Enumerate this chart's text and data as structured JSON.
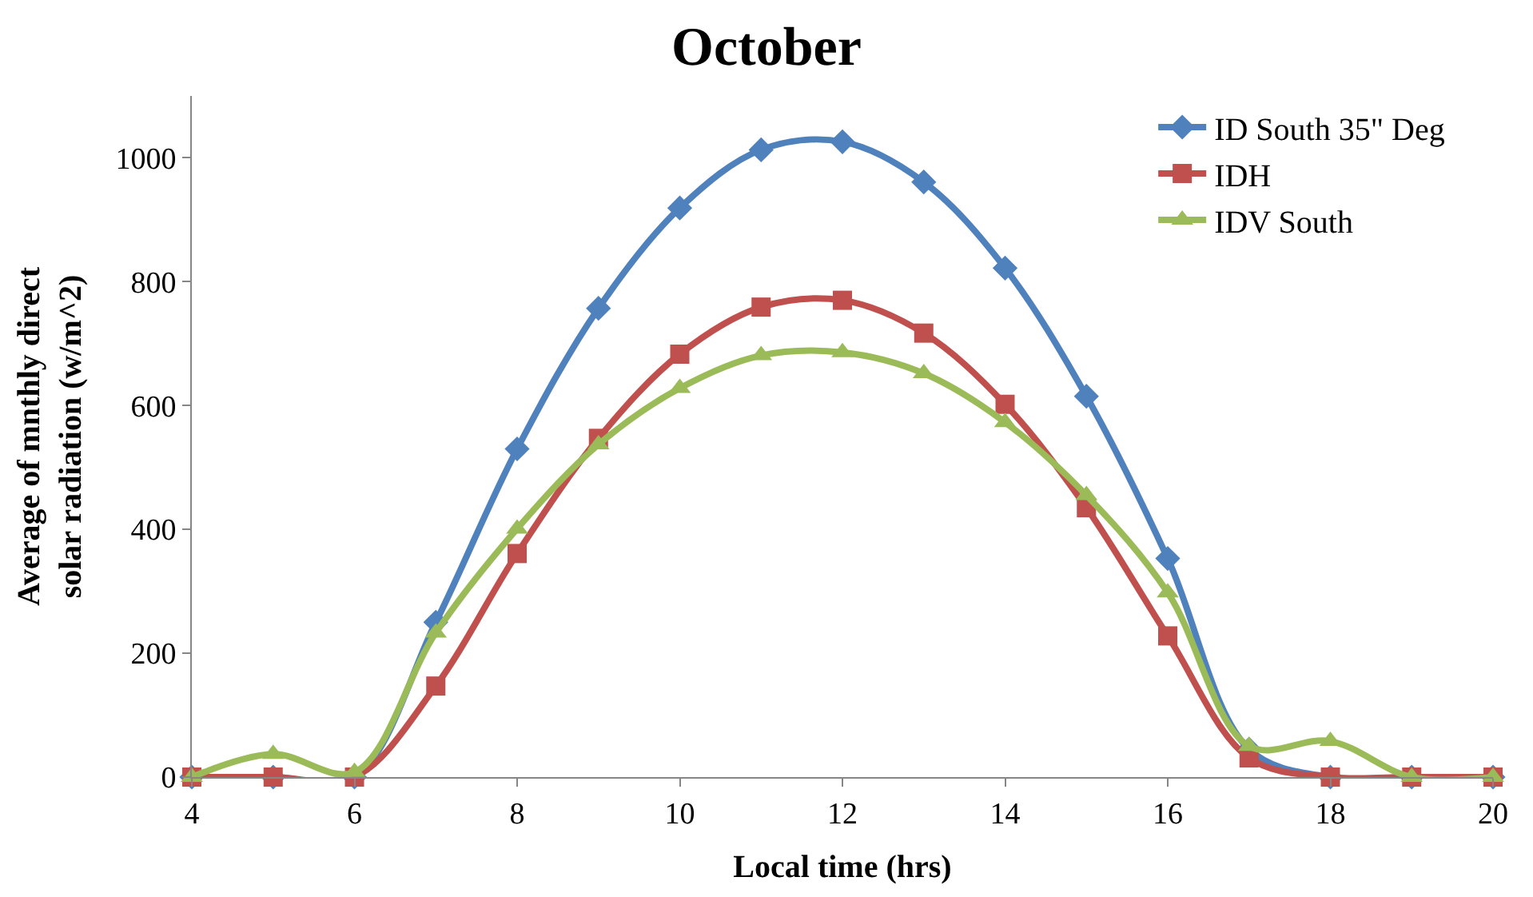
{
  "chart_data": {
    "type": "line",
    "title": "October",
    "xlabel": "Local time (hrs)",
    "ylabel": "Average of mnthly direct\nsolar radiation (w/m^2)",
    "x": [
      4,
      5,
      6,
      7,
      8,
      9,
      10,
      11,
      12,
      13,
      14,
      15,
      16,
      17,
      18,
      19,
      20
    ],
    "xlim": [
      4,
      20
    ],
    "xticks": [
      4,
      6,
      8,
      10,
      12,
      14,
      16,
      18,
      20
    ],
    "ylim": [
      0,
      1100
    ],
    "yticks": [
      0,
      200,
      400,
      600,
      800,
      1000
    ],
    "legend": "top right",
    "line_style": "solid",
    "series": [
      {
        "name": "ID South 35\" Deg",
        "color": "#4f81bd",
        "marker": "diamond",
        "values": [
          0,
          0,
          0,
          250,
          530,
          757,
          919,
          1013,
          1026,
          961,
          822,
          615,
          353,
          45,
          0,
          0,
          0
        ]
      },
      {
        "name": "IDH",
        "color": "#c0504d",
        "marker": "square",
        "values": [
          0,
          0,
          0,
          147,
          361,
          547,
          683,
          759,
          770,
          717,
          602,
          435,
          228,
          31,
          0,
          0,
          0
        ]
      },
      {
        "name": "IDV South",
        "color": "#9bbb59",
        "marker": "triangle",
        "values": [
          0,
          37,
          8,
          233,
          401,
          537,
          628,
          681,
          686,
          652,
          573,
          455,
          298,
          50,
          58,
          0,
          0
        ]
      }
    ]
  }
}
